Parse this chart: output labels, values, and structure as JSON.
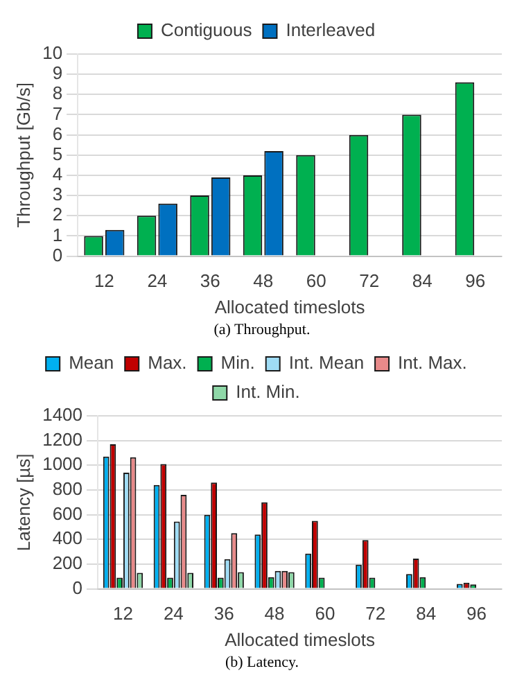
{
  "chart_data": [
    {
      "type": "bar",
      "annotations": [
        "(a)  Throughput."
      ],
      "xlabel": "Allocated timeslots",
      "ylabel": "Throughput [Gb/s]",
      "categories": [
        "12",
        "24",
        "36",
        "48",
        "60",
        "72",
        "84",
        "96"
      ],
      "series": [
        {
          "name": "Contiguous",
          "color": "#00b050",
          "values": [
            1,
            2,
            3,
            4,
            5,
            6,
            7,
            8.6
          ]
        },
        {
          "name": "Interleaved",
          "color": "#0070c0",
          "values": [
            1.3,
            2.6,
            3.9,
            5.2,
            null,
            null,
            null,
            null
          ]
        }
      ],
      "ylim": [
        0,
        10
      ],
      "yticks": [
        0,
        1,
        2,
        3,
        4,
        5,
        6,
        7,
        8,
        9,
        10
      ],
      "grid": "y",
      "legend": "top"
    },
    {
      "type": "bar",
      "annotations": [
        "(b)  Latency."
      ],
      "xlabel": "Allocated timeslots",
      "ylabel": "Latency [µs]",
      "categories": [
        "12",
        "24",
        "36",
        "48",
        "60",
        "72",
        "84",
        "96"
      ],
      "series": [
        {
          "name": "Mean",
          "color": "#00b0f0",
          "values": [
            1070,
            840,
            600,
            440,
            285,
            195,
            120,
            40
          ]
        },
        {
          "name": "Max.",
          "color": "#c00000",
          "values": [
            1170,
            1010,
            860,
            700,
            550,
            395,
            245,
            50
          ]
        },
        {
          "name": "Min.",
          "color": "#00b050",
          "values": [
            90,
            90,
            90,
            95,
            90,
            90,
            95,
            35
          ]
        },
        {
          "name": "Int. Mean",
          "color": "#9fdcf5",
          "values": [
            940,
            545,
            240,
            145,
            null,
            null,
            null,
            null
          ]
        },
        {
          "name": "Int. Max.",
          "color": "#e88a8a",
          "values": [
            1065,
            760,
            450,
            145,
            null,
            null,
            null,
            null
          ]
        },
        {
          "name": "Int. Min.",
          "color": "#8fd8a8",
          "values": [
            130,
            130,
            135,
            135,
            null,
            null,
            null,
            null
          ]
        }
      ],
      "ylim": [
        0,
        1400
      ],
      "yticks": [
        0,
        200,
        400,
        600,
        800,
        1000,
        1200,
        1400
      ],
      "grid": "y",
      "legend": "top"
    }
  ]
}
